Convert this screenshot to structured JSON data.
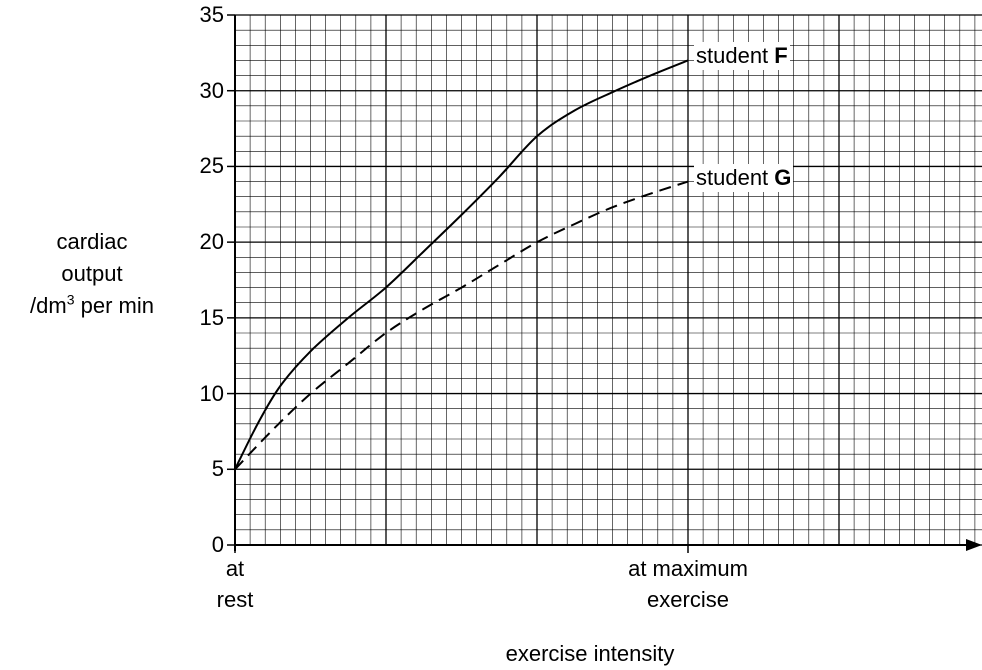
{
  "chart_data": {
    "type": "line",
    "title": "",
    "xlabel": "exercise intensity",
    "ylabel": {
      "line1": "cardiac",
      "line2": "output",
      "unit_prefix": "/dm",
      "unit_sup": "3",
      "unit_suffix": " per min"
    },
    "ylim": [
      0,
      35
    ],
    "y_ticks": [
      "0",
      "5",
      "10",
      "15",
      "20",
      "25",
      "30",
      "35"
    ],
    "xlim": [
      0,
      1.6
    ],
    "x_tick_labels": [
      {
        "x": 0,
        "line1": "at",
        "line2": "rest"
      },
      {
        "x": 1,
        "line1": "at maximum",
        "line2": "exercise"
      }
    ],
    "grid": true,
    "series": [
      {
        "label_text": "student ",
        "label_bold": "F",
        "style": "solid",
        "x": [
          0,
          0.05,
          0.1,
          0.167,
          0.25,
          0.333,
          0.417,
          0.5,
          0.583,
          0.667,
          0.75,
          0.833,
          0.917,
          1.0
        ],
        "y": [
          5,
          8,
          10.5,
          12.8,
          15,
          17,
          19.4,
          21.8,
          24.3,
          27,
          28.7,
          29.9,
          31,
          32
        ]
      },
      {
        "label_text": "student ",
        "label_bold": "G",
        "style": "dashed",
        "x": [
          0,
          0.083,
          0.167,
          0.25,
          0.333,
          0.417,
          0.5,
          0.583,
          0.667,
          0.75,
          0.833,
          0.917,
          1.0
        ],
        "y": [
          5,
          7.6,
          10,
          12,
          14,
          15.6,
          17,
          18.5,
          20,
          21.2,
          22.3,
          23.2,
          24
        ]
      }
    ]
  }
}
